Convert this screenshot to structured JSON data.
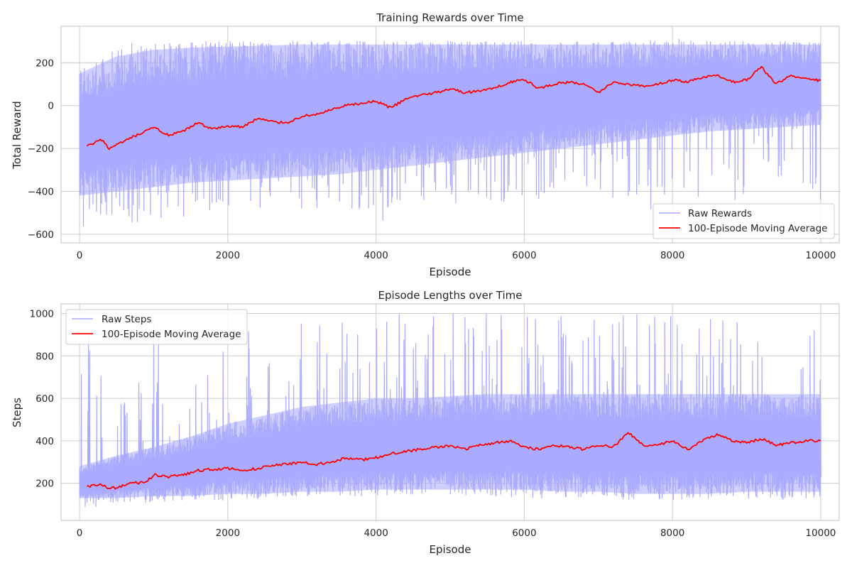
{
  "chart_data": [
    {
      "type": "line",
      "title": "Training Rewards over Time",
      "xlabel": "Episode",
      "ylabel": "Total Reward",
      "xlim": [
        -250,
        10250
      ],
      "ylim": [
        -640,
        370
      ],
      "xticks": [
        0,
        2000,
        4000,
        6000,
        8000,
        10000
      ],
      "yticks": [
        -600,
        -400,
        -200,
        0,
        200
      ],
      "grid": true,
      "legend_position": "bottom-right",
      "series": [
        {
          "name": "Raw Rewards",
          "color": "#aaaaff",
          "style": "raw-band",
          "x": [
            0,
            500,
            1000,
            1500,
            2000,
            2500,
            3000,
            3500,
            4000,
            4500,
            5000,
            5500,
            6000,
            6500,
            7000,
            7500,
            8000,
            8500,
            9000,
            9500,
            10000
          ],
          "upper": [
            150,
            230,
            260,
            270,
            275,
            280,
            285,
            285,
            285,
            285,
            285,
            285,
            285,
            285,
            285,
            285,
            285,
            285,
            285,
            285,
            285
          ],
          "lower": [
            -420,
            -400,
            -380,
            -360,
            -350,
            -340,
            -330,
            -320,
            -300,
            -280,
            -260,
            -240,
            -220,
            -200,
            -180,
            -160,
            -140,
            -120,
            -110,
            -100,
            -90
          ],
          "spike_max": [
            160,
            290,
            290,
            300,
            300,
            300,
            300,
            300,
            300,
            300,
            300,
            300,
            300,
            300,
            300,
            300,
            320,
            300,
            300,
            300,
            290
          ],
          "spike_min": [
            -590,
            -550,
            -550,
            -530,
            -520,
            -500,
            -480,
            -480,
            -570,
            -470,
            -460,
            -450,
            -470,
            -440,
            -430,
            -580,
            -500,
            -450,
            -440,
            -480,
            -440
          ]
        },
        {
          "name": "100-Episode Moving Average",
          "color": "#ff0000",
          "style": "line",
          "x": [
            100,
            200,
            300,
            400,
            500,
            700,
            900,
            1000,
            1200,
            1400,
            1600,
            1800,
            2000,
            2200,
            2400,
            2600,
            2800,
            3000,
            3200,
            3400,
            3600,
            3800,
            4000,
            4200,
            4400,
            4600,
            4800,
            5000,
            5200,
            5400,
            5600,
            5800,
            6000,
            6200,
            6400,
            6600,
            6800,
            7000,
            7200,
            7400,
            7600,
            7800,
            8000,
            8200,
            8400,
            8600,
            8800,
            9000,
            9200,
            9400,
            9600,
            9800,
            10000
          ],
          "y": [
            -190,
            -175,
            -160,
            -200,
            -185,
            -150,
            -120,
            -100,
            -140,
            -120,
            -80,
            -110,
            -95,
            -100,
            -60,
            -75,
            -80,
            -50,
            -40,
            -20,
            0,
            10,
            20,
            -10,
            30,
            50,
            60,
            80,
            60,
            70,
            80,
            110,
            120,
            80,
            100,
            110,
            100,
            60,
            110,
            100,
            90,
            100,
            120,
            110,
            130,
            140,
            110,
            120,
            180,
            100,
            140,
            130,
            115
          ]
        }
      ]
    },
    {
      "type": "line",
      "title": "Episode Lengths over Time",
      "xlabel": "Episode",
      "ylabel": "Steps",
      "xlim": [
        -250,
        10250
      ],
      "ylim": [
        25,
        1045
      ],
      "xticks": [
        0,
        2000,
        4000,
        6000,
        8000,
        10000
      ],
      "yticks": [
        200,
        400,
        600,
        800,
        1000
      ],
      "grid": true,
      "legend_position": "top-left",
      "series": [
        {
          "name": "Raw Steps",
          "color": "#aaaaff",
          "style": "raw-band",
          "x": [
            0,
            500,
            1000,
            1500,
            2000,
            2500,
            3000,
            3500,
            4000,
            4500,
            5000,
            5500,
            6000,
            6500,
            7000,
            7500,
            8000,
            8500,
            9000,
            9500,
            10000
          ],
          "upper": [
            280,
            330,
            370,
            420,
            480,
            520,
            560,
            580,
            600,
            600,
            610,
            620,
            620,
            620,
            620,
            620,
            620,
            620,
            620,
            620,
            620
          ],
          "lower": [
            130,
            130,
            140,
            140,
            150,
            150,
            160,
            160,
            170,
            170,
            170,
            170,
            170,
            160,
            160,
            150,
            150,
            150,
            160,
            160,
            160
          ],
          "spike_max": [
            1000,
            600,
            1000,
            700,
            1000,
            1000,
            1000,
            1000,
            1000,
            1000,
            1000,
            1000,
            1000,
            1000,
            1000,
            1000,
            1000,
            1000,
            1000,
            1000,
            1000
          ],
          "spike_min": [
            75,
            110,
            110,
            120,
            120,
            130,
            140,
            140,
            140,
            140,
            140,
            140,
            130,
            130,
            130,
            120,
            120,
            130,
            130,
            120,
            130
          ]
        },
        {
          "name": "100-Episode Moving Average",
          "color": "#ff0000",
          "style": "line",
          "x": [
            100,
            200,
            300,
            400,
            500,
            700,
            900,
            1000,
            1200,
            1400,
            1600,
            1800,
            2000,
            2200,
            2400,
            2600,
            2800,
            3000,
            3200,
            3400,
            3600,
            3800,
            4000,
            4200,
            4400,
            4600,
            4800,
            5000,
            5200,
            5400,
            5600,
            5800,
            6000,
            6200,
            6400,
            6600,
            6800,
            7000,
            7200,
            7400,
            7600,
            7800,
            8000,
            8200,
            8400,
            8600,
            8800,
            9000,
            9200,
            9400,
            9600,
            9800,
            10000
          ],
          "y": [
            185,
            190,
            195,
            175,
            180,
            200,
            205,
            240,
            230,
            240,
            260,
            265,
            270,
            260,
            270,
            285,
            290,
            300,
            290,
            300,
            320,
            310,
            320,
            340,
            350,
            360,
            370,
            375,
            360,
            380,
            390,
            400,
            370,
            360,
            380,
            370,
            360,
            380,
            370,
            440,
            380,
            380,
            400,
            360,
            400,
            430,
            400,
            390,
            410,
            380,
            390,
            400,
            400
          ]
        }
      ]
    }
  ]
}
